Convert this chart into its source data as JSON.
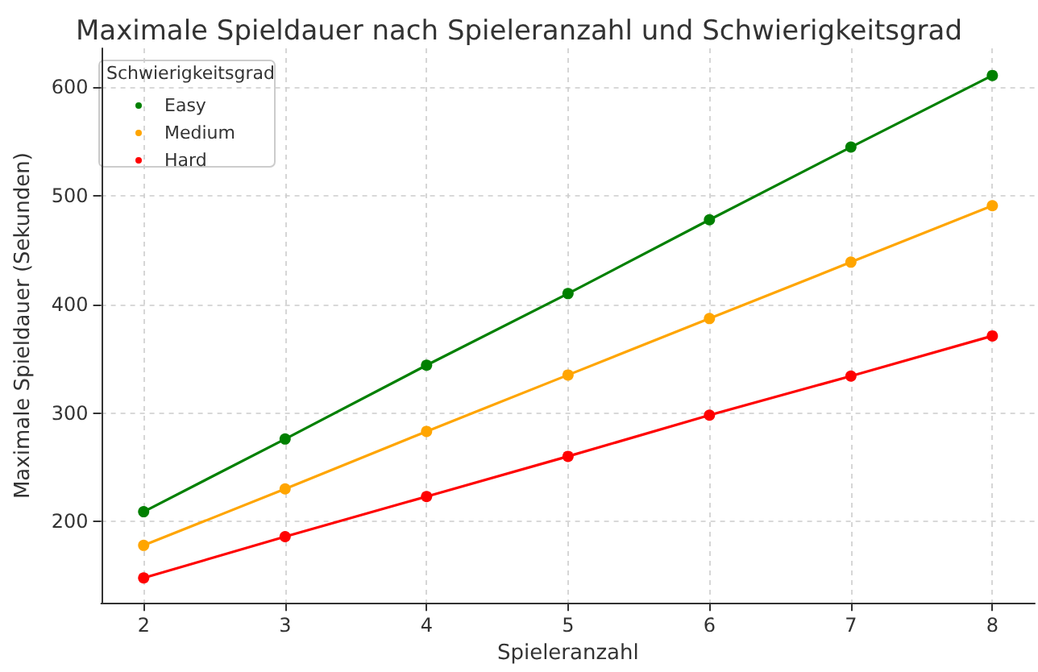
{
  "chart_data": {
    "type": "line",
    "title": "Maximale Spieldauer nach Spieleranzahl und Schwierigkeitsgrad",
    "xlabel": "Spieleranzahl",
    "ylabel": "Maximale Spieldauer (Sekunden)",
    "legend_title": "Schwierigkeitsgrad",
    "x": [
      2,
      3,
      4,
      5,
      6,
      7,
      8
    ],
    "series": [
      {
        "name": "Easy",
        "color": "#008000",
        "values": [
          209,
          276,
          344,
          410,
          478,
          545,
          611
        ]
      },
      {
        "name": "Medium",
        "color": "#ffa500",
        "values": [
          178,
          230,
          283,
          335,
          387,
          439,
          491
        ]
      },
      {
        "name": "Hard",
        "color": "#ff0000",
        "values": [
          148,
          186,
          223,
          260,
          298,
          334,
          371
        ]
      }
    ],
    "xlim": [
      1.7,
      8.3
    ],
    "xticks": [
      2,
      3,
      4,
      5,
      6,
      7,
      8
    ],
    "ylim": [
      125,
      636
    ],
    "yticks": [
      200,
      300,
      400,
      500,
      600
    ],
    "grid": true,
    "legend": "top left",
    "marker": "circle",
    "line_style": "solid"
  }
}
